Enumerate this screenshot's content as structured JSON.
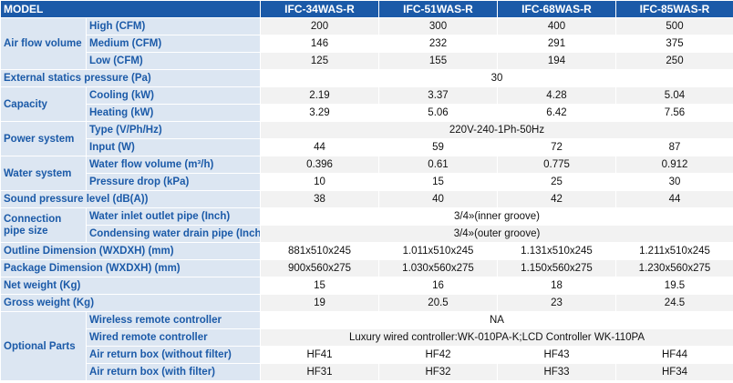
{
  "models": [
    "IFC-34WAS-R",
    "IFC-51WAS-R",
    "IFC-68WAS-R",
    "IFC-85WAS-R"
  ],
  "header": {
    "label": "MODEL"
  },
  "air_flow": {
    "label": "Air flow volume",
    "high": {
      "label": "High (CFM)",
      "values": [
        "200",
        "300",
        "400",
        "500"
      ]
    },
    "medium": {
      "label": "Medium (CFM)",
      "values": [
        "146",
        "232",
        "291",
        "375"
      ]
    },
    "low": {
      "label": "Low (CFM)",
      "values": [
        "125",
        "155",
        "194",
        "250"
      ]
    }
  },
  "external_static": {
    "label": "External statics pressure (Pa)",
    "value": "30"
  },
  "capacity": {
    "label": "Capacity",
    "cooling": {
      "label": "Cooling (kW)",
      "values": [
        "2.19",
        "3.37",
        "4.28",
        "5.04"
      ]
    },
    "heating": {
      "label": "Heating (kW)",
      "values": [
        "3.29",
        "5.06",
        "6.42",
        "7.56"
      ]
    }
  },
  "power": {
    "label": "Power system",
    "type": {
      "label": "Type (V/Ph/Hz)",
      "value": "220V-240-1Ph-50Hz"
    },
    "input": {
      "label": "Input  (W)",
      "values": [
        "44",
        "59",
        "72",
        "87"
      ]
    }
  },
  "water": {
    "label": "Water system",
    "flow": {
      "label": "Water flow volume (m³/h)",
      "values": [
        "0.396",
        "0.61",
        "0.775",
        "0.912"
      ]
    },
    "pressure": {
      "label": "Pressure drop (kPa)",
      "values": [
        "10",
        "15",
        "25",
        "30"
      ]
    }
  },
  "sound": {
    "label": "Sound pressure level (dB(A))",
    "values": [
      "38",
      "40",
      "42",
      "44"
    ]
  },
  "connection": {
    "label": "Connection pipe size",
    "inlet": {
      "label": "Water inlet outlet pipe (Inch)",
      "value": "3/4»(inner groove)"
    },
    "drain": {
      "label": "Condensing water drain pipe (Inch)",
      "value": "3/4»(outer groove)"
    }
  },
  "outline": {
    "label": "Outline Dimension (WXDXH) (mm)",
    "values": [
      "881x510x245",
      "1.011x510x245",
      "1.131x510x245",
      "1.211x510x245"
    ]
  },
  "package": {
    "label": "Package Dimension (WXDXH) (mm)",
    "values": [
      "900x560x275",
      "1.030x560x275",
      "1.150x560x275",
      "1.230x560x275"
    ]
  },
  "net_weight": {
    "label": "Net weight (Kg)",
    "values": [
      "15",
      "16",
      "18",
      "19.5"
    ]
  },
  "gross_weight": {
    "label": "Gross weight (Kg)",
    "values": [
      "19",
      "20.5",
      "23",
      "24.5"
    ]
  },
  "optional": {
    "label": "Optional Parts",
    "wireless": {
      "label": "Wireless remote controller",
      "value": "NA"
    },
    "wired": {
      "label": "Wired remote controller",
      "value": "Luxury wired controller:WK-010PA-K;LCD Controller WK-110PA"
    },
    "return_no_filter": {
      "label": "Air return box (without filter)",
      "values": [
        "HF41",
        "HF42",
        "HF43",
        "HF44"
      ]
    },
    "return_filter": {
      "label": "Air return box (with filter)",
      "values": [
        "HF31",
        "HF32",
        "HF33",
        "HF34"
      ]
    }
  }
}
